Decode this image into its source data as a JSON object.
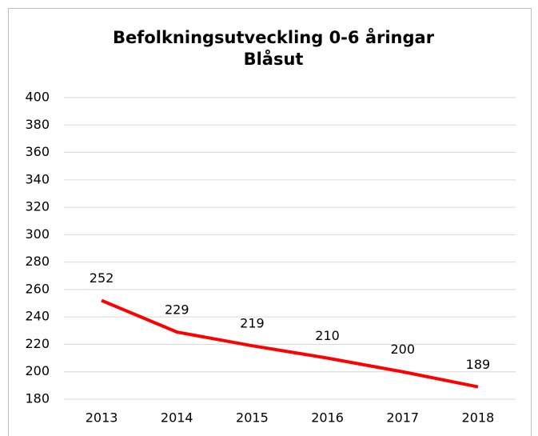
{
  "chart_data": {
    "type": "line",
    "title": [
      "Befolkningsutveckling 0-6 åringar",
      "Blåsut"
    ],
    "categories": [
      "2013",
      "2014",
      "2015",
      "2016",
      "2017",
      "2018"
    ],
    "series": [
      {
        "color": "#ff0000",
        "values": [
          252,
          229,
          219,
          210,
          200,
          189
        ]
      }
    ],
    "ylim": [
      180,
      400
    ],
    "yticks": [
      180,
      200,
      220,
      240,
      260,
      280,
      300,
      320,
      340,
      360,
      380,
      400
    ],
    "grid": true,
    "data_labels": true
  }
}
